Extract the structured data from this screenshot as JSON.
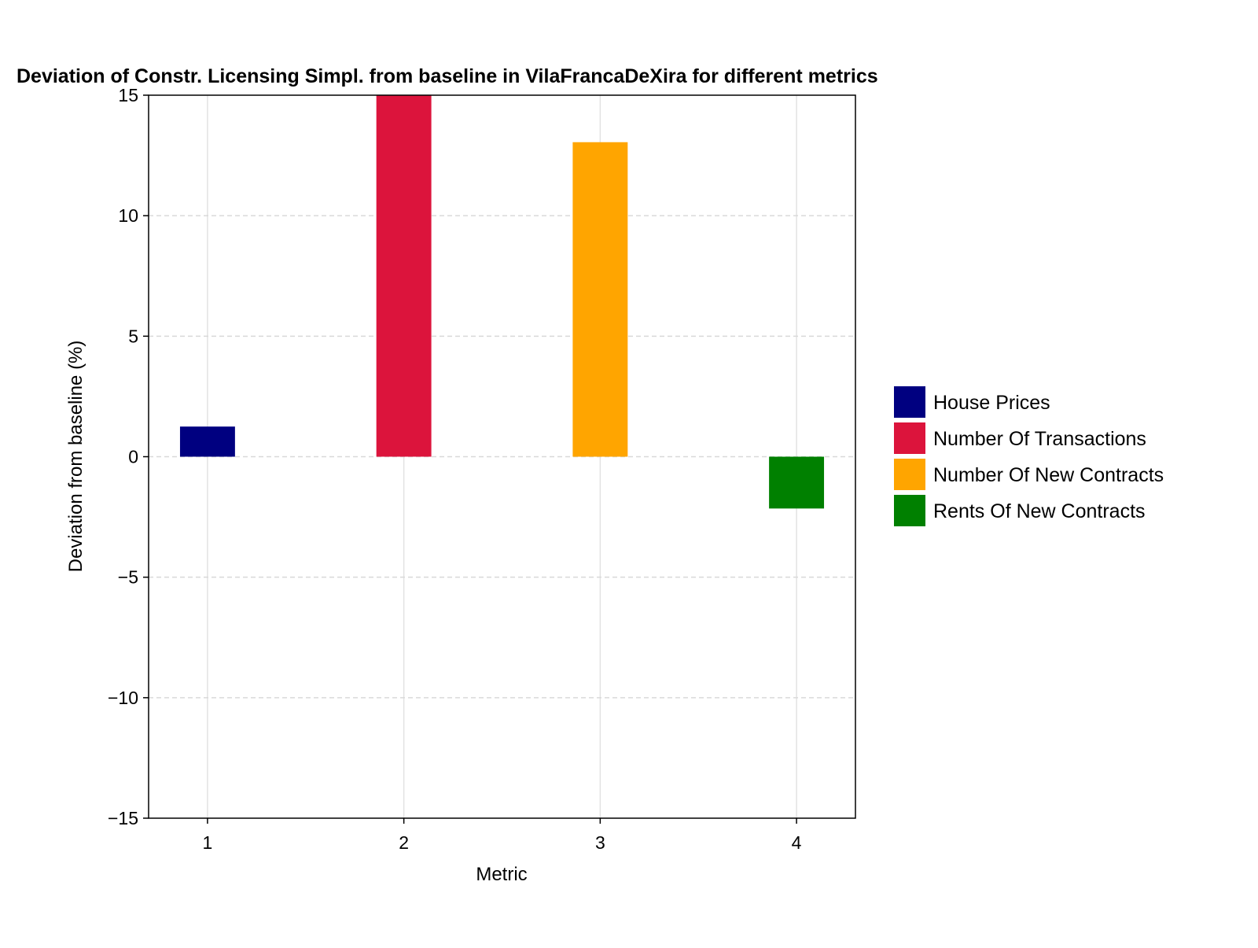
{
  "chart_data": {
    "type": "bar",
    "title": "Deviation of Constr. Licensing Simpl. from baseline in VilaFrancaDeXira for different metrics",
    "xlabel": "Metric",
    "ylabel": "Deviation from baseline (%)",
    "categories": [
      "1",
      "2",
      "3",
      "4"
    ],
    "x": [
      1,
      2,
      3,
      4
    ],
    "xlim": [
      0.7,
      4.3
    ],
    "ylim": [
      -15,
      15
    ],
    "yticks": [
      -15,
      -10,
      -5,
      0,
      5,
      10,
      15
    ],
    "ytick_labels": [
      "−15",
      "−10",
      "−5",
      "0",
      "5",
      "10",
      "15"
    ],
    "grid": true,
    "legend_position": "right",
    "series": [
      {
        "name": "House Prices",
        "x": 1,
        "value": 1.25,
        "color": "#000080"
      },
      {
        "name": "Number Of Transactions",
        "x": 2,
        "value": 15.0,
        "color": "#DC143C"
      },
      {
        "name": "Number Of New Contracts",
        "x": 3,
        "value": 13.05,
        "color": "#FFA500"
      },
      {
        "name": "Rents Of New Contracts",
        "x": 4,
        "value": -2.15,
        "color": "#008000"
      }
    ]
  }
}
